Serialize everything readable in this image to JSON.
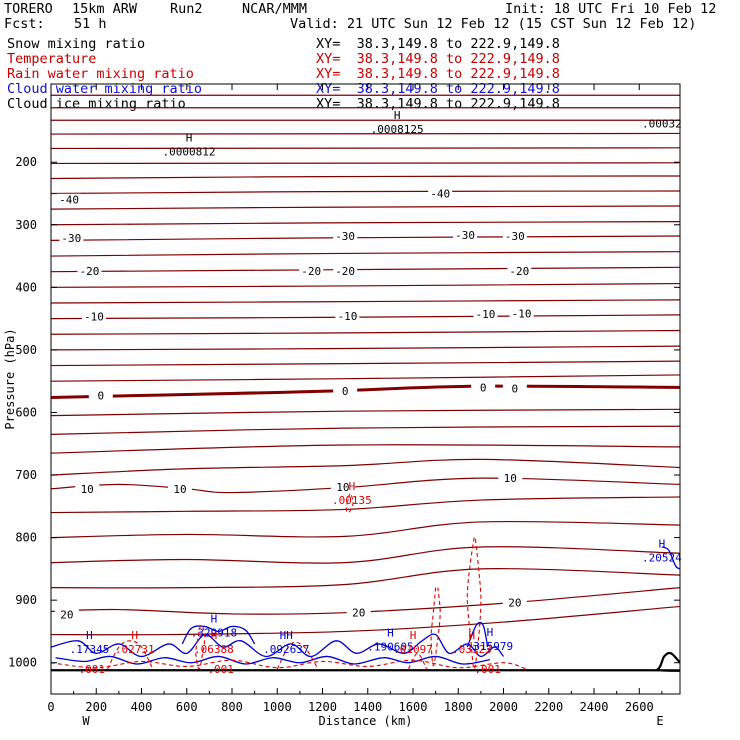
{
  "header": {
    "model": "TORERO",
    "resolution": "15km ARW",
    "run": "Run2",
    "org": "NCAR/MMM",
    "init": "Init: 18 UTC Fri 10 Feb 12",
    "fcst_label": "Fcst:",
    "fcst_value": "51 h",
    "valid": "Valid: 21 UTC Sun 12 Feb 12 (15 CST Sun 12 Feb 12)"
  },
  "fields": [
    {
      "name": "Snow mixing ratio",
      "xy": "XY=  38.3,149.8 to 222.9,149.8",
      "color": "#000000"
    },
    {
      "name": "Temperature",
      "xy": "XY=  38.3,149.8 to 222.9,149.8",
      "color": "#c00000"
    },
    {
      "name": "Rain water mixing ratio",
      "xy": "XY=  38.3,149.8 to 222.9,149.8",
      "color": "#d00000"
    },
    {
      "name": "Cloud water mixing ratio",
      "xy": "XY=  38.3,149.8 to 222.9,149.8",
      "color": "#1010d0"
    },
    {
      "name": "Cloud ice mixing ratio",
      "xy": "XY=  38.3,149.8 to 222.9,149.8",
      "color": "#000000"
    }
  ],
  "colors": {
    "temperature": "#800000",
    "rain": "#e00000",
    "cloud_water": "#0000cc",
    "axis": "#000000"
  },
  "chart_data": {
    "type": "cross-section",
    "xlabel": "Distance (km)",
    "ylabel": "Pressure (hPa)",
    "xlim": [
      0,
      2780
    ],
    "ylim": [
      1050,
      75
    ],
    "x_ticks": [
      0,
      200,
      400,
      600,
      800,
      1000,
      1200,
      1400,
      1600,
      1800,
      2000,
      2200,
      2400,
      2600
    ],
    "y_ticks": [
      200,
      300,
      400,
      500,
      600,
      700,
      800,
      900,
      1000
    ],
    "left_end_label": "W",
    "right_end_label": "E",
    "temperature_labels": [
      {
        "text": "-40",
        "x": 80,
        "p": 260
      },
      {
        "text": "-40",
        "x": 1720,
        "p": 250
      },
      {
        "text": "-30",
        "x": 90,
        "p": 321
      },
      {
        "text": "-30",
        "x": 1300,
        "p": 318
      },
      {
        "text": "-30",
        "x": 1830,
        "p": 316
      },
      {
        "text": "-30",
        "x": 2050,
        "p": 318
      },
      {
        "text": "-20",
        "x": 170,
        "p": 374
      },
      {
        "text": "-20",
        "x": 1150,
        "p": 374
      },
      {
        "text": "-20",
        "x": 1300,
        "p": 374
      },
      {
        "text": "-20",
        "x": 2070,
        "p": 374
      },
      {
        "text": "-10",
        "x": 190,
        "p": 447
      },
      {
        "text": "-10",
        "x": 1310,
        "p": 446
      },
      {
        "text": "-10",
        "x": 1920,
        "p": 443
      },
      {
        "text": "-10",
        "x": 2080,
        "p": 442
      },
      {
        "text": "0",
        "x": 220,
        "p": 573
      },
      {
        "text": "0",
        "x": 1300,
        "p": 566
      },
      {
        "text": "0",
        "x": 1910,
        "p": 560
      },
      {
        "text": "0",
        "x": 2050,
        "p": 562
      },
      {
        "text": "10",
        "x": 160,
        "p": 722
      },
      {
        "text": "10",
        "x": 570,
        "p": 722
      },
      {
        "text": "10",
        "x": 1290,
        "p": 719
      },
      {
        "text": "10",
        "x": 2030,
        "p": 705
      },
      {
        "text": "20",
        "x": 70,
        "p": 923
      },
      {
        "text": "20",
        "x": 1360,
        "p": 920
      },
      {
        "text": "20",
        "x": 2050,
        "p": 904
      }
    ],
    "maxima_labels": [
      {
        "mark": "H",
        "value": ".0000812",
        "x": 610,
        "p": 183,
        "series": "snow"
      },
      {
        "mark": "H",
        "value": ".0008125",
        "x": 1530,
        "p": 147,
        "series": "ice"
      },
      {
        "mark": "",
        "value": ".00032",
        "x": 2700,
        "p": 138,
        "series": "ice"
      },
      {
        "mark": "H",
        "value": ".00135",
        "x": 1330,
        "p": 740,
        "series": "rain"
      },
      {
        "mark": "H",
        "value": ".20524",
        "x": 2700,
        "p": 832,
        "series": "cloud"
      },
      {
        "mark": "H",
        "value": ".329918",
        "x": 720,
        "p": 952,
        "series": "cloud"
      },
      {
        "mark": "H",
        "value": ".17345",
        "x": 170,
        "p": 978,
        "series": "cloud"
      },
      {
        "mark": "H",
        "value": ".02731",
        "x": 370,
        "p": 978,
        "series": "rain"
      },
      {
        "mark": "H",
        "value": ".06388",
        "x": 720,
        "p": 978,
        "series": "rain"
      },
      {
        "mark": "HH",
        "value": ".092637",
        "x": 1040,
        "p": 978,
        "series": "cloud"
      },
      {
        "mark": "H",
        "value": ".190605",
        "x": 1500,
        "p": 974,
        "series": "cloud"
      },
      {
        "mark": "H",
        "value": ".01097",
        "x": 1600,
        "p": 978,
        "series": "rain"
      },
      {
        "mark": "H",
        "value": ".03123",
        "x": 1860,
        "p": 978,
        "series": "rain"
      },
      {
        "mark": "H",
        "value": ".315979",
        "x": 1940,
        "p": 973,
        "series": "cloud"
      },
      {
        "mark": "",
        "value": ".001",
        "x": 180,
        "p": 1010,
        "series": "rain"
      },
      {
        "mark": "",
        "value": ".001",
        "x": 750,
        "p": 1010,
        "series": "rain"
      },
      {
        "mark": "",
        "value": ".001",
        "x": 1930,
        "p": 1010,
        "series": "rain"
      }
    ],
    "temperature_isotherms": [
      {
        "x": [
          0,
          2780
        ],
        "p": [
          93,
          93
        ]
      },
      {
        "x": [
          0,
          2780
        ],
        "p": [
          113,
          113
        ]
      },
      {
        "x": [
          0,
          2780
        ],
        "p": [
          133,
          133
        ]
      },
      {
        "x": [
          0,
          2780
        ],
        "p": [
          155,
          154
        ]
      },
      {
        "x": [
          0,
          2780
        ],
        "p": [
          178,
          177
        ]
      },
      {
        "x": [
          0,
          2780
        ],
        "p": [
          202,
          201
        ]
      },
      {
        "x": [
          0,
          1200,
          2780
        ],
        "p": [
          226,
          223,
          222
        ]
      },
      {
        "x": [
          0,
          1200,
          2780
        ],
        "p": [
          250,
          247,
          246
        ]
      },
      {
        "x": [
          0,
          1200,
          2780
        ],
        "p": [
          275,
          272,
          270
        ]
      },
      {
        "x": [
          0,
          1200,
          2780
        ],
        "p": [
          300,
          297,
          295
        ]
      },
      {
        "x": [
          0,
          1200,
          2780
        ],
        "p": [
          325,
          321,
          318
        ]
      },
      {
        "x": [
          0,
          1200,
          2780
        ],
        "p": [
          350,
          346,
          343
        ]
      },
      {
        "x": [
          0,
          1200,
          2780
        ],
        "p": [
          375,
          372,
          368
        ]
      },
      {
        "x": [
          0,
          1200,
          2780
        ],
        "p": [
          400,
          398,
          394
        ]
      },
      {
        "x": [
          0,
          1200,
          2780
        ],
        "p": [
          425,
          423,
          420
        ]
      },
      {
        "x": [
          0,
          1200,
          2780
        ],
        "p": [
          450,
          448,
          444
        ]
      },
      {
        "x": [
          0,
          1200,
          2780
        ],
        "p": [
          475,
          473,
          469
        ]
      },
      {
        "x": [
          0,
          1200,
          2780
        ],
        "p": [
          500,
          498,
          494
        ]
      },
      {
        "x": [
          0,
          1300,
          2780
        ],
        "p": [
          525,
          522,
          518
        ]
      },
      {
        "x": [
          0,
          1300,
          2780
        ],
        "p": [
          550,
          546,
          540
        ]
      },
      {
        "x": [
          0,
          500,
          1000,
          1300,
          1900,
          2780
        ],
        "p": [
          576,
          572,
          568,
          565,
          558,
          560
        ]
      },
      {
        "x": [
          0,
          1300,
          2780
        ],
        "p": [
          605,
          598,
          595
        ]
      },
      {
        "x": [
          0,
          1300,
          2780
        ],
        "p": [
          635,
          625,
          622
        ]
      },
      {
        "x": [
          0,
          1300,
          2780
        ],
        "p": [
          665,
          652,
          655
        ]
      },
      {
        "x": [
          0,
          600,
          1300,
          1900,
          2780
        ],
        "p": [
          700,
          690,
          685,
          675,
          688
        ]
      },
      {
        "x": [
          0,
          300,
          600,
          800,
          1300,
          1900,
          2780
        ],
        "p": [
          722,
          715,
          722,
          728,
          720,
          705,
          715
        ]
      },
      {
        "x": [
          0,
          600,
          1300,
          1900,
          2780
        ],
        "p": [
          760,
          758,
          755,
          740,
          735
        ]
      },
      {
        "x": [
          0,
          600,
          1300,
          1900,
          2780
        ],
        "p": [
          800,
          795,
          798,
          775,
          780
        ]
      },
      {
        "x": [
          0,
          600,
          1300,
          1900,
          2780
        ],
        "p": [
          840,
          835,
          840,
          815,
          825
        ]
      },
      {
        "x": [
          0,
          600,
          1300,
          1900,
          2780
        ],
        "p": [
          880,
          880,
          875,
          850,
          860
        ]
      },
      {
        "x": [
          0,
          300,
          800,
          1300,
          2000,
          2780
        ],
        "p": [
          918,
          915,
          922,
          920,
          905,
          880
        ]
      },
      {
        "x": [
          0,
          500,
          1300,
          2000,
          2780
        ],
        "p": [
          955,
          955,
          950,
          935,
          910
        ]
      }
    ],
    "zero_isotherm_index": 20,
    "cloud_water_contours": [
      {
        "x": [
          0,
          120,
          200,
          300,
          400,
          520,
          600,
          680,
          760,
          840,
          950,
          1060,
          1150,
          1260,
          1350,
          1450,
          1560,
          1640,
          1700,
          1760,
          1840,
          1900,
          1960,
          2000
        ],
        "p": [
          975,
          965,
          985,
          970,
          990,
          970,
          985,
          955,
          975,
          965,
          990,
          970,
          990,
          965,
          985,
          970,
          985,
          965,
          955,
          985,
          970,
          990,
          975,
          990
        ]
      },
      {
        "x": [
          20,
          150,
          260,
          380,
          500,
          620,
          740,
          860,
          980,
          1100,
          1220,
          1340,
          1470,
          1580,
          1700,
          1820,
          1940
        ],
        "p": [
          992,
          998,
          990,
          1002,
          992,
          1000,
          990,
          1002,
          992,
          1000,
          990,
          1002,
          992,
          1000,
          990,
          1002,
          995
        ]
      },
      {
        "x": [
          580,
          620,
          680,
          740,
          800,
          860,
          900
        ],
        "p": [
          970,
          945,
          942,
          950,
          942,
          948,
          970
        ]
      },
      {
        "x": [
          1840,
          1880,
          1910,
          1930
        ],
        "p": [
          975,
          940,
          940,
          975
        ]
      },
      {
        "x": [
          2700,
          2730,
          2760,
          2780
        ],
        "p": [
          815,
          820,
          845,
          850
        ]
      }
    ],
    "rain_contours": [
      {
        "x": [
          1870,
          1850,
          1840,
          1855,
          1870,
          1890,
          1900,
          1890,
          1875
        ],
        "p": [
          800,
          850,
          900,
          960,
          1010,
          960,
          900,
          850,
          800
        ]
      },
      {
        "x": [
          1700,
          1690,
          1680,
          1690,
          1710,
          1720,
          1710
        ],
        "p": [
          880,
          920,
          960,
          1005,
          960,
          920,
          880
        ]
      },
      {
        "x": [
          660,
          650,
          640,
          655,
          670,
          680,
          670
        ],
        "p": [
          940,
          960,
          985,
          1010,
          985,
          960,
          940
        ]
      },
      {
        "x": [
          1320,
          1310,
          1305,
          1315,
          1330,
          1335,
          1325
        ],
        "p": [
          730,
          742,
          755,
          760,
          752,
          742,
          730
        ]
      },
      {
        "x": [
          0,
          200,
          400,
          600,
          800,
          1000,
          1200,
          1400,
          1600,
          1800,
          2000,
          2100
        ],
        "p": [
          1000,
          1008,
          998,
          1006,
          996,
          1008,
          998,
          1006,
          996,
          1008,
          1000,
          1010
        ]
      },
      {
        "x": [
          250,
          300,
          350,
          400,
          450
        ],
        "p": [
          1010,
          975,
          965,
          975,
          1010
        ]
      },
      {
        "x": [
          1000,
          1060,
          1120,
          1180
        ],
        "p": [
          1010,
          970,
          975,
          1010
        ]
      },
      {
        "x": [
          1580,
          1620,
          1660
        ],
        "p": [
          1010,
          985,
          1010
        ]
      }
    ],
    "terrain": {
      "x": [
        0,
        2600,
        2680,
        2710,
        2740,
        2780
      ],
      "p": [
        1012,
        1012,
        1011,
        990,
        985,
        1000
      ]
    }
  }
}
